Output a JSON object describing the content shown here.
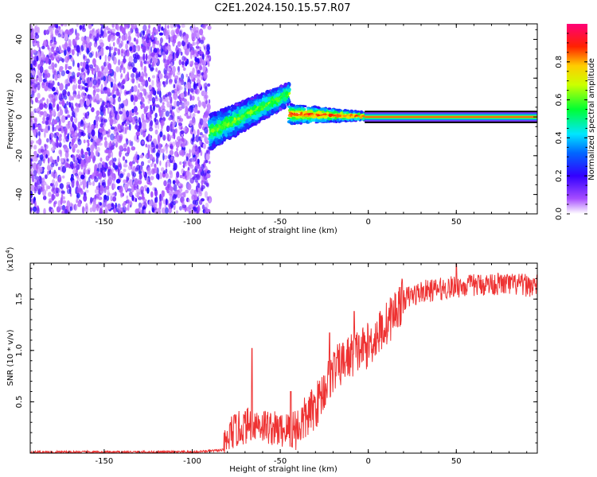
{
  "title": "C2E1.2024.150.15.57.R07",
  "chart_data": [
    {
      "type": "heatmap",
      "xlabel": "Height of straight line (km)",
      "ylabel": "Frequency (Hz)",
      "xlim": [
        -192,
        96
      ],
      "ylim": [
        -50,
        48
      ],
      "xticks": [
        -150,
        -100,
        -50,
        0,
        50
      ],
      "yticks": [
        -40,
        -20,
        0,
        20,
        40
      ],
      "colorbar": {
        "label": "Normalized spectral amplitude",
        "range": [
          0,
          1
        ],
        "ticks": [
          0.0,
          0.2,
          0.4,
          0.6,
          0.8
        ],
        "tick_labels": [
          "0.0",
          "0.2",
          "0.4",
          "0.6",
          "0.8"
        ],
        "colors": [
          "#ffffff",
          "#7b00d6",
          "#0000ff",
          "#00e0ff",
          "#00ff00",
          "#ffff00",
          "#ff0000",
          "#ff0080"
        ]
      },
      "regions": [
        {
          "name": "noise",
          "x": [
            -192,
            -90
          ],
          "y": [
            -50,
            48
          ],
          "level": 0.15
        },
        {
          "name": "transition",
          "x": [
            -90,
            -45
          ],
          "y_center": [
            -8,
            12
          ],
          "half_width": 9,
          "level": 0.45
        },
        {
          "name": "narrow-band",
          "x": [
            -45,
            96
          ],
          "y": 0,
          "level": 0.9
        }
      ]
    },
    {
      "type": "line",
      "xlabel": "Height of straight line (km)",
      "ylabel": "SNR (10 * v/v)",
      "multiplier": "(x10",
      "multiplier_exp": "4",
      "multiplier_close": ")",
      "xlim": [
        -192,
        96
      ],
      "ylim": [
        0.0,
        1.85
      ],
      "xticks": [
        -150,
        -100,
        -50,
        0,
        50
      ],
      "yticks": [
        0.5,
        1.0,
        1.5
      ],
      "ytick_labels": [
        "0.5",
        "1.0",
        "1.5"
      ],
      "line_color": "#ee3333",
      "envelope": [
        {
          "x": -192,
          "y": 0.01
        },
        {
          "x": -100,
          "y": 0.01
        },
        {
          "x": -82,
          "y": 0.03
        },
        {
          "x": -78,
          "y": 0.2
        },
        {
          "x": -65,
          "y": 0.3
        },
        {
          "x": -50,
          "y": 0.22
        },
        {
          "x": -40,
          "y": 0.25
        },
        {
          "x": -30,
          "y": 0.45
        },
        {
          "x": -20,
          "y": 0.8
        },
        {
          "x": -10,
          "y": 0.95
        },
        {
          "x": 0,
          "y": 1.05
        },
        {
          "x": 10,
          "y": 1.25
        },
        {
          "x": 20,
          "y": 1.5
        },
        {
          "x": 30,
          "y": 1.57
        },
        {
          "x": 50,
          "y": 1.62
        },
        {
          "x": 70,
          "y": 1.65
        },
        {
          "x": 96,
          "y": 1.63
        }
      ],
      "spikes": [
        {
          "x": -66,
          "y": 1.02
        },
        {
          "x": -44,
          "y": 0.6
        },
        {
          "x": -22,
          "y": 1.17
        },
        {
          "x": -8,
          "y": 1.38
        },
        {
          "x": 50,
          "y": 1.84
        }
      ]
    }
  ]
}
